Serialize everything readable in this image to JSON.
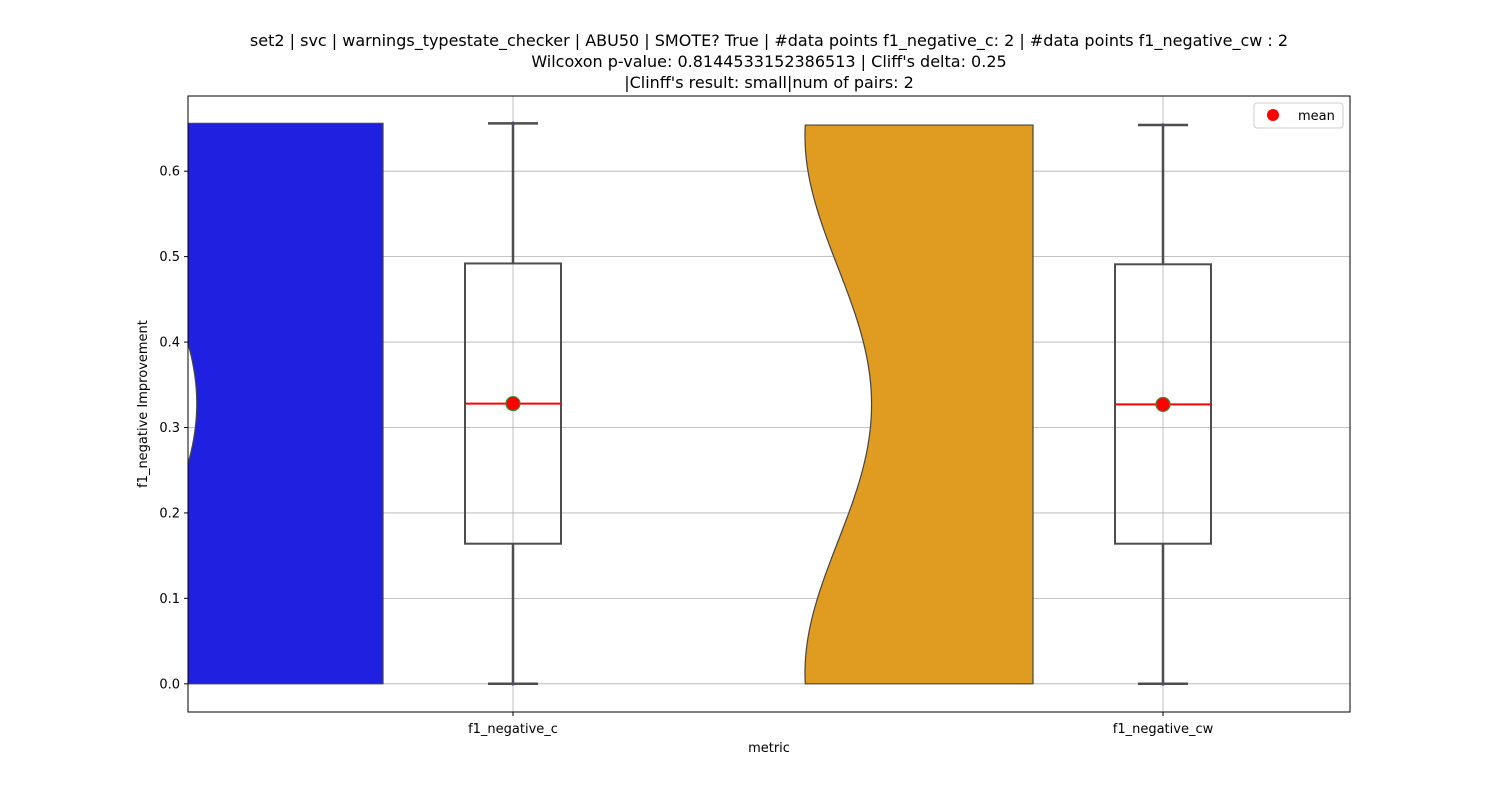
{
  "chart_data": {
    "type": "violin-box",
    "title_lines": [
      "set2 | svc | warnings_typestate_checker | ABU50 | SMOTE? True | #data points f1_negative_c: 2 | #data points f1_negative_cw : 2",
      "Wilcoxon p-value: 0.8144533152386513 | Cliff's delta: 0.25",
      "|Clinff's result: small|num of pairs: 2"
    ],
    "xlabel": "metric",
    "ylabel": "f1_negative Improvement",
    "ylim": [
      -0.033,
      0.688
    ],
    "yticks": [
      "0.0",
      "0.1",
      "0.2",
      "0.3",
      "0.4",
      "0.5",
      "0.6"
    ],
    "grid": true,
    "legend": {
      "placement": "top-right",
      "label": "mean",
      "marker_color": "#ff0000"
    },
    "categories": [
      "f1_negative_c",
      "f1_negative_cw"
    ],
    "series": [
      {
        "category": "f1_negative_c",
        "color": "#2020e0",
        "points": [
          0.0,
          0.656
        ],
        "min": 0.0,
        "q1": 0.164,
        "median": 0.328,
        "q3": 0.492,
        "max": 0.656,
        "mean": 0.328
      },
      {
        "category": "f1_negative_cw",
        "color": "#e09c20",
        "points": [
          0.0,
          0.654
        ],
        "min": 0.0,
        "q1": 0.164,
        "median": 0.327,
        "q3": 0.491,
        "max": 0.654,
        "mean": 0.327
      }
    ]
  }
}
